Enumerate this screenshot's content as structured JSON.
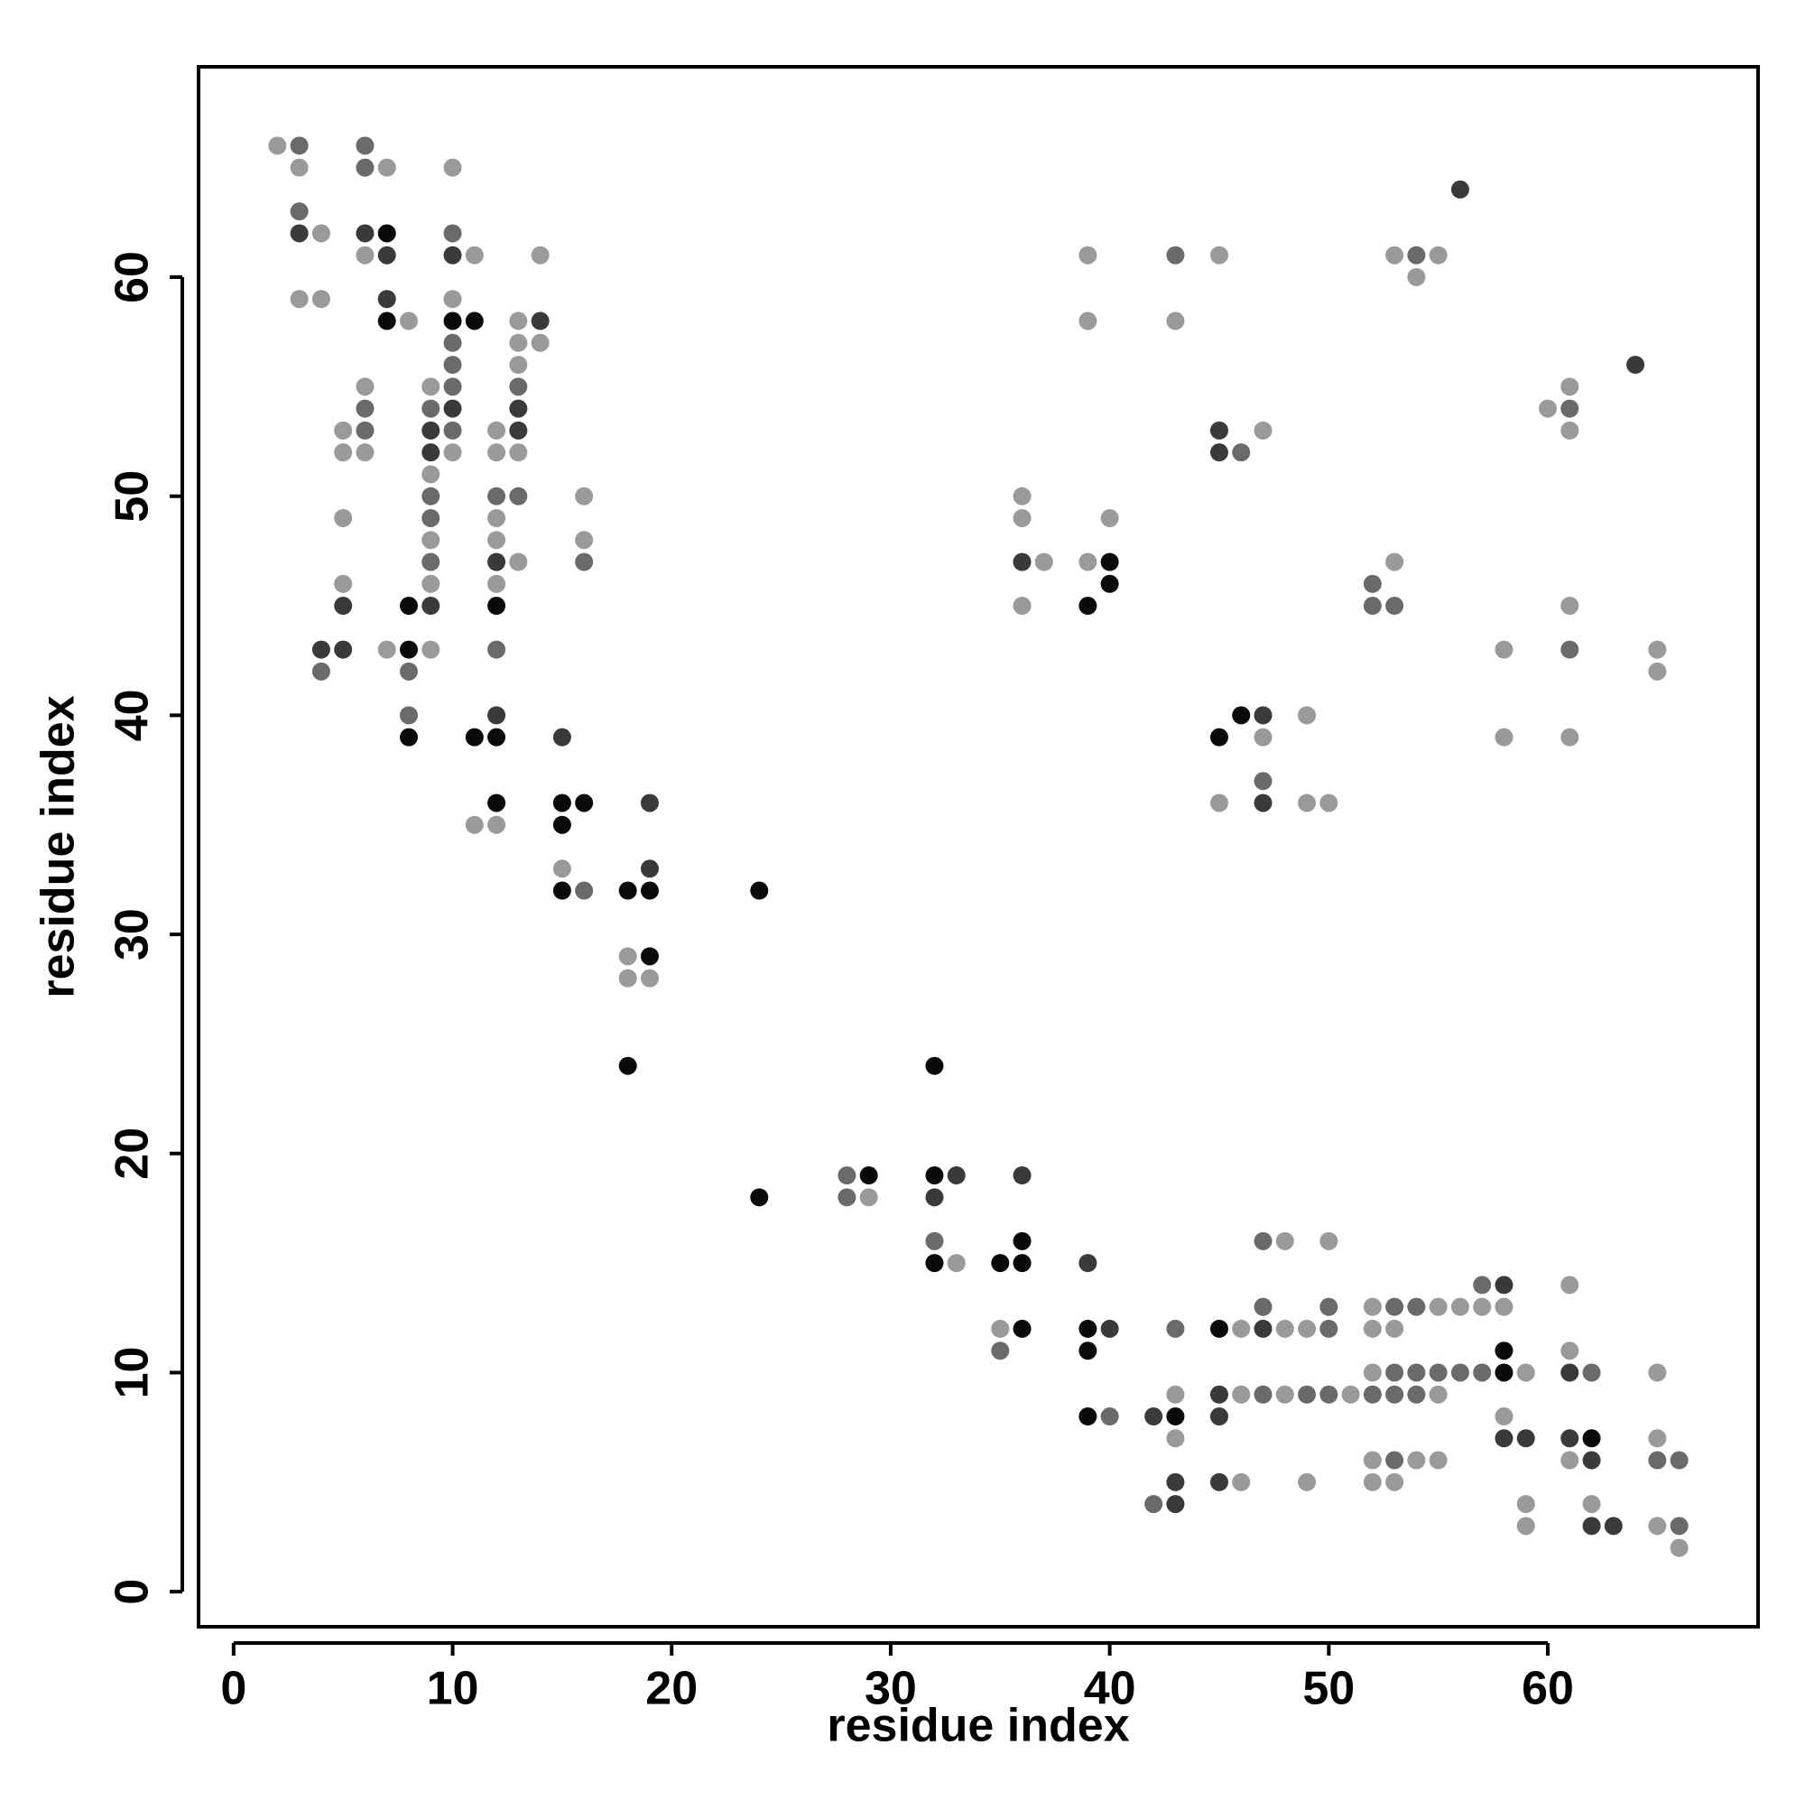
{
  "chart_data": {
    "type": "scatter",
    "xlabel": "residue index",
    "ylabel": "residue index",
    "xlim": [
      -1.6,
      69.6
    ],
    "ylim": [
      -1.6,
      69.6
    ],
    "xticks": [
      0,
      10,
      20,
      30,
      40,
      50,
      60
    ],
    "yticks": [
      0,
      10,
      20,
      30,
      40,
      50,
      60
    ],
    "series": [
      {
        "color": "#0a0a0a",
        "x": [
          7,
          10,
          11,
          7,
          40,
          40,
          8,
          12,
          39,
          8,
          46,
          8,
          11,
          12,
          45,
          12,
          15,
          16,
          15,
          15,
          18,
          19,
          24,
          19,
          18,
          32,
          29,
          32,
          24,
          36,
          32,
          35,
          36,
          36,
          39,
          45,
          39,
          58,
          58,
          39,
          43,
          62
        ],
        "y": [
          62,
          58,
          58,
          58,
          47,
          46,
          45,
          45,
          45,
          43,
          40,
          39,
          39,
          39,
          39,
          36,
          36,
          36,
          35,
          32,
          32,
          32,
          32,
          29,
          24,
          24,
          19,
          19,
          18,
          16,
          15,
          15,
          15,
          12,
          12,
          12,
          11,
          11,
          10,
          8,
          8,
          7
        ]
      },
      {
        "color": "#3a3a3a",
        "x": [
          56,
          3,
          6,
          7,
          10,
          7,
          14,
          64,
          10,
          13,
          9,
          13,
          45,
          9,
          45,
          12,
          36,
          5,
          9,
          4,
          5,
          12,
          47,
          15,
          19,
          47,
          19,
          33,
          36,
          32,
          39,
          58,
          40,
          47,
          61,
          45,
          42,
          45,
          58,
          59,
          61,
          62,
          43,
          45,
          43,
          62,
          63
        ],
        "y": [
          64,
          62,
          62,
          61,
          61,
          59,
          58,
          56,
          54,
          54,
          53,
          53,
          53,
          52,
          52,
          47,
          47,
          45,
          45,
          43,
          43,
          40,
          40,
          39,
          36,
          36,
          33,
          19,
          19,
          18,
          15,
          14,
          12,
          12,
          10,
          9,
          8,
          8,
          7,
          7,
          7,
          6,
          5,
          5,
          4,
          3,
          3
        ]
      },
      {
        "color": "#6a6a6a",
        "x": [
          3,
          6,
          6,
          3,
          10,
          43,
          54,
          10,
          10,
          10,
          13,
          6,
          9,
          61,
          6,
          10,
          46,
          9,
          12,
          13,
          9,
          9,
          16,
          52,
          52,
          53,
          12,
          61,
          4,
          8,
          8,
          47,
          16,
          28,
          28,
          32,
          47,
          57,
          47,
          50,
          53,
          54,
          43,
          50,
          35,
          53,
          54,
          55,
          56,
          57,
          62,
          47,
          49,
          50,
          52,
          53,
          54,
          40,
          53,
          65,
          66,
          42,
          66
        ],
        "y": [
          66,
          66,
          65,
          63,
          62,
          61,
          61,
          57,
          56,
          55,
          55,
          54,
          54,
          54,
          53,
          53,
          52,
          50,
          50,
          50,
          49,
          47,
          47,
          46,
          45,
          45,
          43,
          43,
          42,
          42,
          40,
          37,
          32,
          19,
          18,
          16,
          16,
          14,
          13,
          13,
          13,
          13,
          12,
          12,
          11,
          10,
          10,
          10,
          10,
          10,
          10,
          9,
          9,
          9,
          9,
          9,
          9,
          8,
          6,
          6,
          6,
          4,
          3
        ]
      },
      {
        "color": "#9a9a9a",
        "x": [
          2,
          3,
          7,
          10,
          4,
          6,
          11,
          14,
          39,
          45,
          53,
          55,
          54,
          3,
          4,
          10,
          8,
          13,
          39,
          43,
          13,
          14,
          13,
          6,
          9,
          61,
          60,
          5,
          12,
          47,
          61,
          5,
          6,
          10,
          12,
          13,
          9,
          16,
          36,
          5,
          12,
          36,
          40,
          9,
          12,
          16,
          13,
          37,
          39,
          53,
          5,
          9,
          12,
          36,
          61,
          7,
          9,
          58,
          65,
          65,
          49,
          47,
          58,
          61,
          45,
          49,
          50,
          11,
          12,
          15,
          18,
          18,
          19,
          29,
          48,
          50,
          33,
          61,
          52,
          55,
          56,
          57,
          58,
          35,
          46,
          48,
          49,
          52,
          53,
          61,
          52,
          59,
          65,
          43,
          46,
          48,
          51,
          55,
          58,
          43,
          65,
          52,
          54,
          55,
          61,
          46,
          49,
          52,
          53,
          59,
          62,
          59,
          65,
          66
        ],
        "y": [
          66,
          65,
          65,
          65,
          62,
          61,
          61,
          61,
          61,
          61,
          61,
          61,
          60,
          59,
          59,
          59,
          58,
          58,
          58,
          58,
          57,
          57,
          56,
          55,
          55,
          55,
          54,
          53,
          53,
          53,
          53,
          52,
          52,
          52,
          52,
          52,
          51,
          50,
          50,
          49,
          49,
          49,
          49,
          48,
          48,
          48,
          47,
          47,
          47,
          47,
          46,
          46,
          46,
          45,
          45,
          43,
          43,
          43,
          43,
          42,
          40,
          39,
          39,
          39,
          36,
          36,
          36,
          35,
          35,
          33,
          29,
          28,
          28,
          18,
          16,
          16,
          15,
          14,
          13,
          13,
          13,
          13,
          13,
          12,
          12,
          12,
          12,
          12,
          12,
          11,
          10,
          10,
          10,
          9,
          9,
          9,
          9,
          9,
          8,
          7,
          7,
          6,
          6,
          6,
          6,
          5,
          5,
          5,
          5,
          4,
          4,
          3,
          3,
          2
        ]
      }
    ]
  }
}
